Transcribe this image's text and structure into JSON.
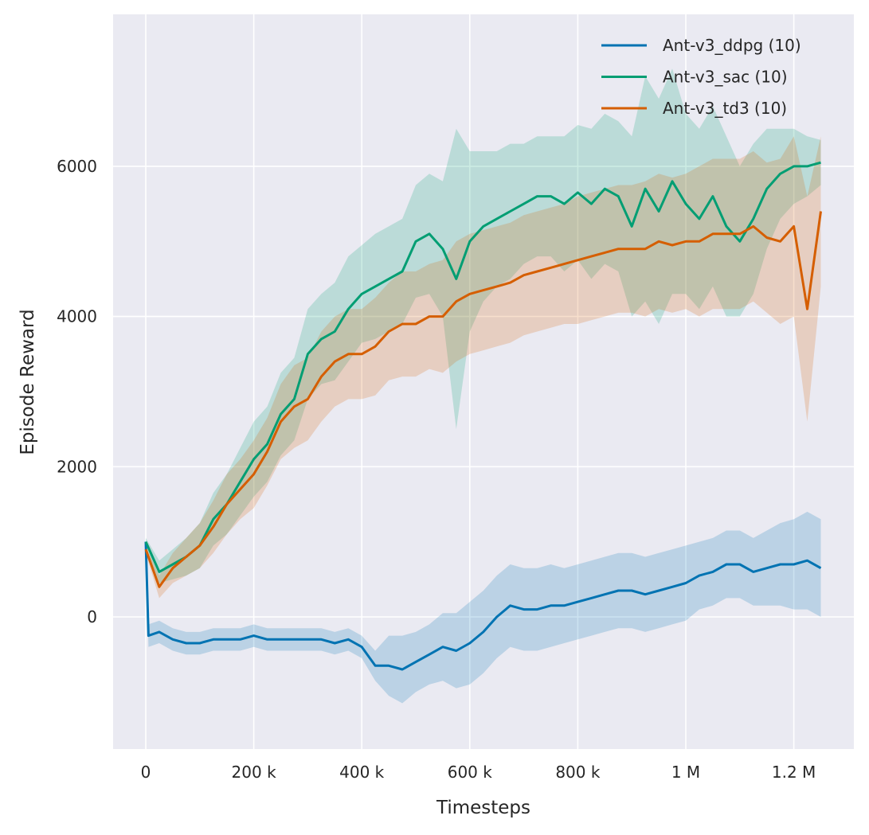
{
  "chart_data": {
    "type": "line",
    "xlabel": "Timesteps",
    "ylabel": "Episode Reward",
    "xlim": [
      -60000,
      1310000
    ],
    "ylim": [
      -1760,
      8020
    ],
    "x_ticks": [
      0,
      200000,
      400000,
      600000,
      800000,
      1000000,
      1200000
    ],
    "x_tick_labels": [
      "0",
      "200 k",
      "400 k",
      "600 k",
      "800 k",
      "1 M",
      "1.2 M"
    ],
    "y_ticks": [
      0,
      2000,
      4000,
      6000
    ],
    "y_tick_labels": [
      "0",
      "2000",
      "4000",
      "6000"
    ],
    "grid": true,
    "background": "#eaeaf2",
    "legend_position": "top-right",
    "series": [
      {
        "name": "Ant-v3_ddpg (10)",
        "color": "#0173b2",
        "x": [
          0,
          5000,
          25000,
          50000,
          75000,
          100000,
          125000,
          150000,
          175000,
          200000,
          225000,
          250000,
          275000,
          300000,
          325000,
          350000,
          375000,
          400000,
          425000,
          450000,
          475000,
          500000,
          525000,
          550000,
          575000,
          600000,
          625000,
          650000,
          675000,
          700000,
          725000,
          750000,
          775000,
          800000,
          825000,
          850000,
          875000,
          900000,
          925000,
          950000,
          975000,
          1000000,
          1025000,
          1050000,
          1075000,
          1100000,
          1125000,
          1150000,
          1175000,
          1200000,
          1225000,
          1250000
        ],
        "y": [
          1000,
          -250,
          -200,
          -300,
          -350,
          -350,
          -300,
          -300,
          -300,
          -250,
          -300,
          -300,
          -300,
          -300,
          -300,
          -350,
          -300,
          -400,
          -650,
          -650,
          -700,
          -600,
          -500,
          -400,
          -450,
          -350,
          -200,
          0,
          150,
          100,
          100,
          150,
          150,
          200,
          250,
          300,
          350,
          350,
          300,
          350,
          400,
          450,
          550,
          600,
          700,
          700,
          600,
          650,
          700,
          700,
          750,
          650
        ],
        "ci_halfwidth": [
          50,
          150,
          150,
          150,
          150,
          150,
          150,
          150,
          150,
          150,
          150,
          150,
          150,
          150,
          150,
          150,
          150,
          150,
          200,
          400,
          450,
          400,
          400,
          450,
          500,
          550,
          550,
          550,
          550,
          550,
          550,
          550,
          500,
          500,
          500,
          500,
          500,
          500,
          500,
          500,
          500,
          500,
          450,
          450,
          450,
          450,
          450,
          500,
          550,
          600,
          650,
          650
        ]
      },
      {
        "name": "Ant-v3_sac (10)",
        "color": "#029e73",
        "x": [
          0,
          25000,
          50000,
          75000,
          100000,
          125000,
          150000,
          175000,
          200000,
          225000,
          250000,
          275000,
          300000,
          325000,
          350000,
          375000,
          400000,
          425000,
          450000,
          475000,
          500000,
          525000,
          550000,
          575000,
          600000,
          625000,
          650000,
          675000,
          700000,
          725000,
          750000,
          775000,
          800000,
          825000,
          850000,
          875000,
          900000,
          925000,
          950000,
          975000,
          1000000,
          1025000,
          1050000,
          1075000,
          1100000,
          1125000,
          1150000,
          1175000,
          1200000,
          1225000,
          1250000
        ],
        "y": [
          1000,
          600,
          700,
          800,
          950,
          1300,
          1500,
          1800,
          2100,
          2300,
          2700,
          2900,
          3500,
          3700,
          3800,
          4100,
          4300,
          4400,
          4500,
          4600,
          5000,
          5100,
          4900,
          4500,
          5000,
          5200,
          5300,
          5400,
          5500,
          5600,
          5600,
          5500,
          5650,
          5500,
          5700,
          5600,
          5200,
          5700,
          5400,
          5800,
          5500,
          5300,
          5600,
          5200,
          5000,
          5300,
          5700,
          5900,
          6000,
          6000,
          6050
        ],
        "ci_halfwidth": [
          50,
          150,
          200,
          250,
          300,
          350,
          400,
          450,
          500,
          500,
          550,
          550,
          600,
          600,
          650,
          700,
          650,
          700,
          700,
          700,
          750,
          800,
          900,
          2000,
          1200,
          1000,
          900,
          900,
          800,
          800,
          800,
          900,
          900,
          1000,
          1000,
          1000,
          1200,
          1500,
          1500,
          1500,
          1200,
          1200,
          1200,
          1200,
          1000,
          1000,
          800,
          600,
          500,
          400,
          300
        ]
      },
      {
        "name": "Ant-v3_td3 (10)",
        "color": "#d55e00",
        "x": [
          0,
          25000,
          50000,
          75000,
          100000,
          125000,
          150000,
          175000,
          200000,
          225000,
          250000,
          275000,
          300000,
          325000,
          350000,
          375000,
          400000,
          425000,
          450000,
          475000,
          500000,
          525000,
          550000,
          575000,
          600000,
          625000,
          650000,
          675000,
          700000,
          725000,
          750000,
          775000,
          800000,
          825000,
          850000,
          875000,
          900000,
          925000,
          950000,
          975000,
          1000000,
          1025000,
          1050000,
          1075000,
          1100000,
          1125000,
          1150000,
          1175000,
          1200000,
          1225000,
          1250000
        ],
        "y": [
          900,
          400,
          650,
          800,
          950,
          1200,
          1500,
          1700,
          1900,
          2200,
          2600,
          2800,
          2900,
          3200,
          3400,
          3500,
          3500,
          3600,
          3800,
          3900,
          3900,
          4000,
          4000,
          4200,
          4300,
          4350,
          4400,
          4450,
          4550,
          4600,
          4650,
          4700,
          4750,
          4800,
          4850,
          4900,
          4900,
          4900,
          5000,
          4950,
          5000,
          5000,
          5100,
          5100,
          5100,
          5200,
          5050,
          5000,
          5200,
          4100,
          5400
        ],
        "ci_halfwidth": [
          50,
          150,
          200,
          250,
          300,
          350,
          400,
          400,
          450,
          450,
          500,
          550,
          550,
          600,
          600,
          600,
          600,
          650,
          650,
          700,
          700,
          700,
          750,
          800,
          800,
          800,
          800,
          800,
          800,
          800,
          800,
          800,
          850,
          850,
          850,
          850,
          850,
          900,
          900,
          900,
          900,
          1000,
          1000,
          1000,
          1000,
          1000,
          1000,
          1100,
          1200,
          1500,
          1000
        ]
      }
    ]
  }
}
